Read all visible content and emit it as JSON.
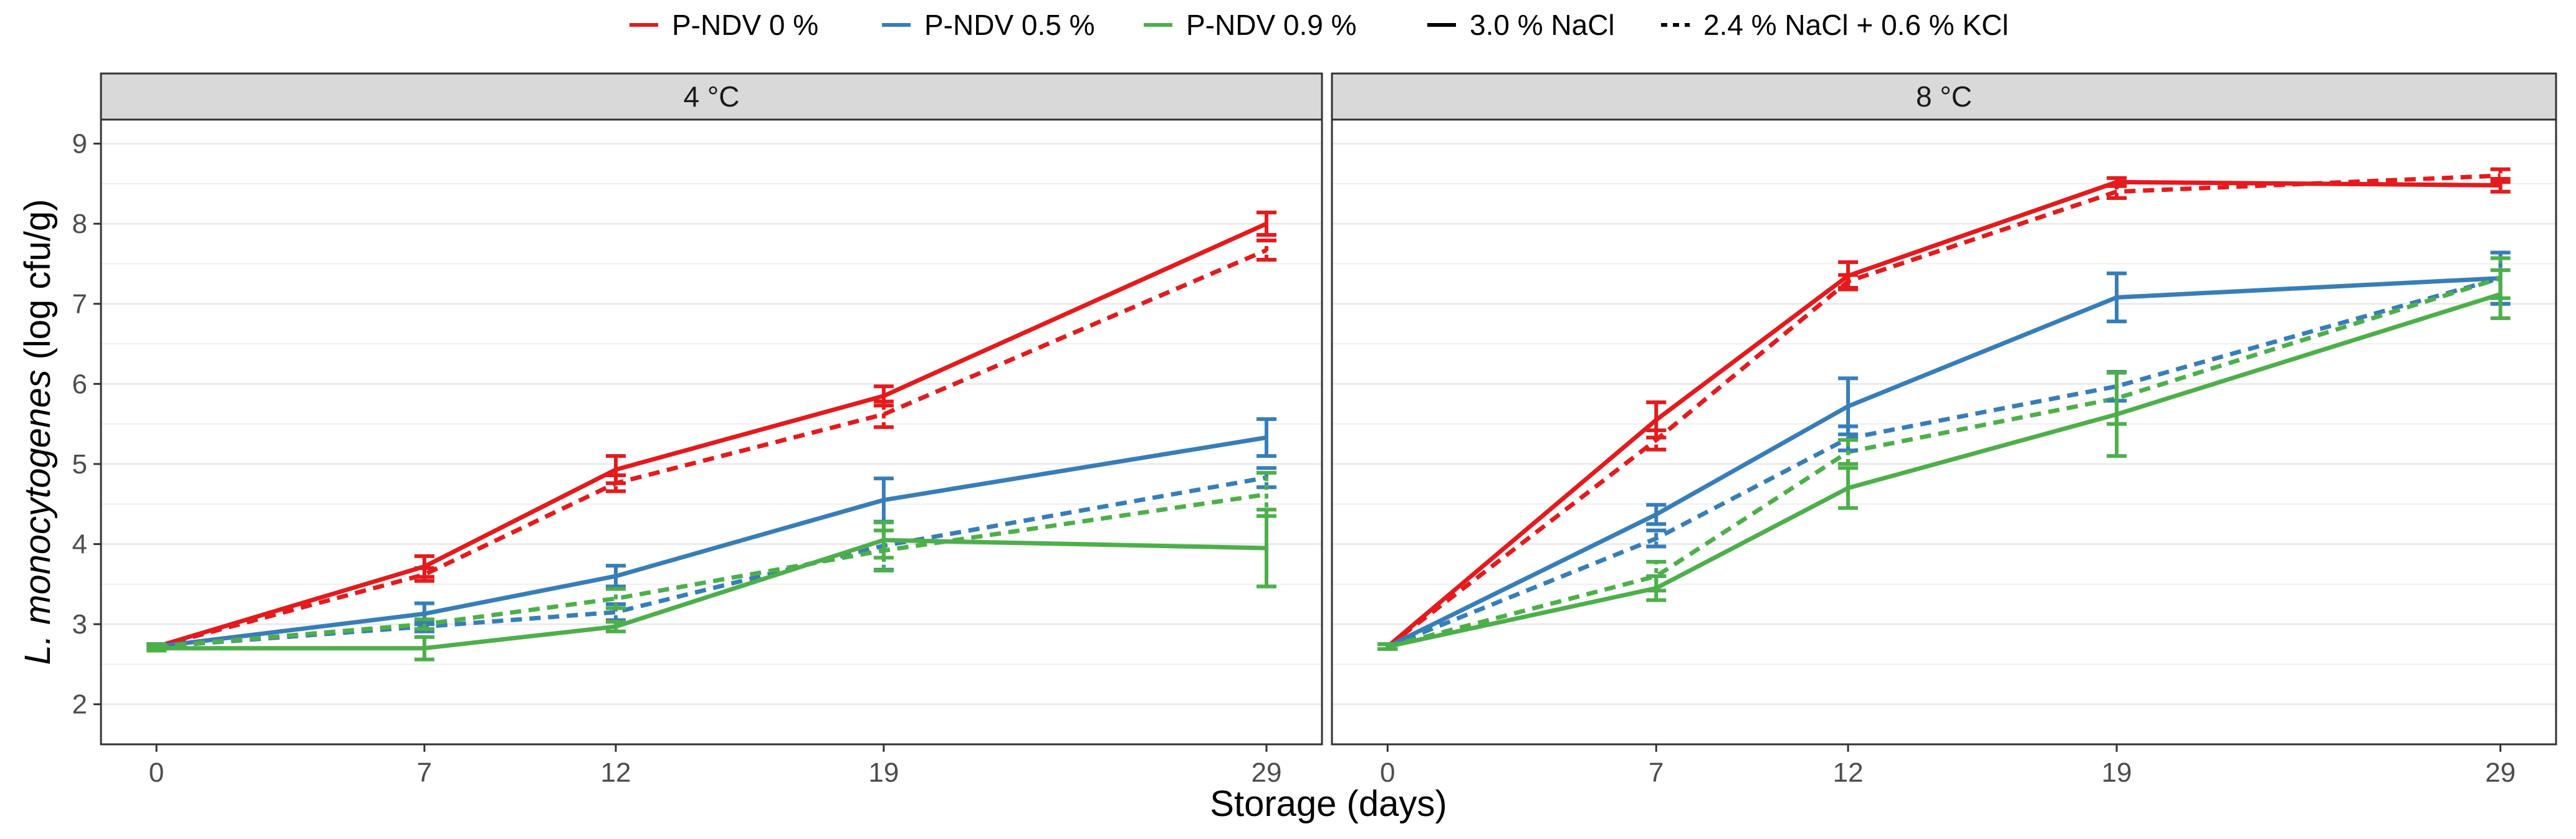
{
  "colors": {
    "P-NDV 0 %": "#e41a1c",
    "P-NDV 0.5 %": "#377eb8",
    "P-NDV 0.9 %": "#4daf4a",
    "strip_bg": "#d9d9d9",
    "grid": "#ebebeb",
    "panel_border": "#333333"
  },
  "legend": {
    "color_entries": [
      "P-NDV 0 %",
      "P-NDV 0.5 %",
      "P-NDV 0.9 %"
    ],
    "linetype_entries": [
      {
        "label": "3.0 % NaCl",
        "style": "solid"
      },
      {
        "label": "2.4 % NaCl + 0.6 % KCl",
        "style": "dashed"
      }
    ],
    "placement": "top"
  },
  "chart_data": {
    "type": "line",
    "xlabel": "Storage (days)",
    "ylabel_italic": "L. monocytogenes",
    "ylabel_rest": " (log cfu/g)",
    "ylim": [
      1.5,
      9.3
    ],
    "y_ticks": [
      2,
      3,
      4,
      5,
      6,
      7,
      8,
      9
    ],
    "x_ticks": [
      0,
      7,
      12,
      19,
      29
    ],
    "x_tick_labels": [
      "0",
      "7",
      "12",
      "19",
      "29"
    ],
    "grid": true,
    "panels": [
      {
        "label": "4 °C",
        "series": [
          {
            "color_group": "P-NDV 0 %",
            "salt": "3.0 % NaCl",
            "linetype": "solid",
            "y": [
              2.72,
              3.72,
              4.93,
              5.85,
              8.0
            ],
            "err": [
              0.03,
              0.13,
              0.17,
              0.12,
              0.14
            ]
          },
          {
            "color_group": "P-NDV 0 %",
            "salt": "2.4 % NaCl + 0.6 % KCl",
            "linetype": "dashed",
            "y": [
              2.72,
              3.62,
              4.76,
              5.62,
              7.67
            ],
            "err": [
              0.03,
              0.08,
              0.1,
              0.16,
              0.12
            ]
          },
          {
            "color_group": "P-NDV 0.5 %",
            "salt": "3.0 % NaCl",
            "linetype": "solid",
            "y": [
              2.72,
              3.13,
              3.6,
              4.55,
              5.33
            ],
            "err": [
              0.03,
              0.13,
              0.13,
              0.27,
              0.23
            ]
          },
          {
            "color_group": "P-NDV 0.5 %",
            "salt": "2.4 % NaCl + 0.6 % KCl",
            "linetype": "dashed",
            "y": [
              2.72,
              2.97,
              3.15,
              3.98,
              4.83
            ],
            "err": [
              0.03,
              0.06,
              0.1,
              0.3,
              0.12
            ]
          },
          {
            "color_group": "P-NDV 0.9 %",
            "salt": "3.0 % NaCl",
            "linetype": "solid",
            "y": [
              2.7,
              2.7,
              2.97,
              4.05,
              3.95
            ],
            "err": [
              0.03,
              0.14,
              0.06,
              0.22,
              0.48
            ]
          },
          {
            "color_group": "P-NDV 0.9 %",
            "salt": "2.4 % NaCl + 0.6 % KCl",
            "linetype": "dashed",
            "y": [
              2.72,
              3.0,
              3.32,
              3.92,
              4.62
            ],
            "err": [
              0.03,
              0.06,
              0.12,
              0.25,
              0.27
            ]
          }
        ]
      },
      {
        "label": "8 °C",
        "series": [
          {
            "color_group": "P-NDV 0 %",
            "salt": "3.0 % NaCl",
            "linetype": "solid",
            "y": [
              2.72,
              5.55,
              7.35,
              8.52,
              8.48
            ],
            "err": [
              0.03,
              0.22,
              0.17,
              0.05,
              0.08
            ]
          },
          {
            "color_group": "P-NDV 0 %",
            "salt": "2.4 % NaCl + 0.6 % KCl",
            "linetype": "dashed",
            "y": [
              2.72,
              5.3,
              7.28,
              8.4,
              8.6
            ],
            "err": [
              0.03,
              0.12,
              0.08,
              0.08,
              0.08
            ]
          },
          {
            "color_group": "P-NDV 0.5 %",
            "salt": "3.0 % NaCl",
            "linetype": "solid",
            "y": [
              2.72,
              4.37,
              5.72,
              7.08,
              7.32
            ],
            "err": [
              0.03,
              0.12,
              0.35,
              0.3,
              0.32
            ]
          },
          {
            "color_group": "P-NDV 0.5 %",
            "salt": "2.4 % NaCl + 0.6 % KCl",
            "linetype": "dashed",
            "y": [
              2.72,
              4.07,
              5.32,
              5.97,
              7.32
            ],
            "err": [
              0.03,
              0.1,
              0.15,
              0.18,
              0.32
            ]
          },
          {
            "color_group": "P-NDV 0.9 %",
            "salt": "3.0 % NaCl",
            "linetype": "solid",
            "y": [
              2.72,
              3.45,
              4.7,
              5.62,
              7.12
            ],
            "err": [
              0.03,
              0.15,
              0.25,
              0.52,
              0.3
            ]
          },
          {
            "color_group": "P-NDV 0.9 %",
            "salt": "2.4 % NaCl + 0.6 % KCl",
            "linetype": "dashed",
            "y": [
              2.72,
              3.6,
              5.15,
              5.82,
              7.32
            ],
            "err": [
              0.03,
              0.18,
              0.15,
              0.32,
              0.25
            ]
          }
        ]
      }
    ]
  }
}
